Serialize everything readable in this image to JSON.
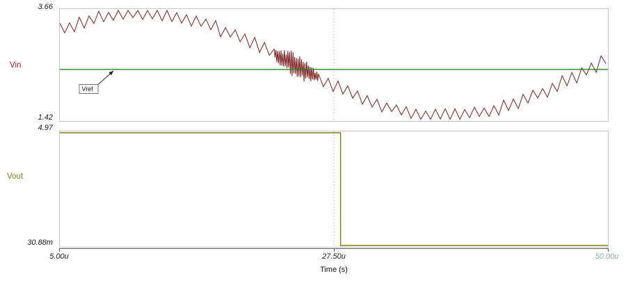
{
  "x_axis": {
    "label": "Time (s)",
    "ticks": [
      {
        "label": "5.00u",
        "t_us": 5,
        "color": "#1a1a1a"
      },
      {
        "label": "27.50u",
        "t_us": 27.5,
        "color": "#1a1a1a"
      },
      {
        "label": "50.00u",
        "t_us": 50,
        "color": "#8aa9b4"
      }
    ],
    "gridline_at_us": 27.5
  },
  "chart_data": [
    {
      "type": "line",
      "panel": "top",
      "ylabel": "Vin",
      "ylabel_color": "#8b2020",
      "y_top_label": "3.66",
      "y_bottom_label": "1.42",
      "ylim": [
        1.42,
        3.66
      ],
      "xlim_us": [
        5,
        50
      ],
      "grid": "off",
      "series": [
        {
          "name": "Vin",
          "color": "#7c1e1e",
          "kind": "noisy_sine",
          "center_v": 2.55,
          "amplitude_v": 1.05,
          "period_us": 50,
          "peak_at_us": 11.7,
          "noise_amplitude_v": 0.15,
          "noise_step_us": 0.4,
          "burst": {
            "start_us": 22.5,
            "end_us": 26.2,
            "amplitude_v": 0.27,
            "step_us": 0.07
          }
        },
        {
          "name": "Vref",
          "color": "#1f8a1f",
          "kind": "constant",
          "value_v": 2.45
        }
      ],
      "annotation": {
        "text": "Vref",
        "box_t_us": 6.6,
        "box_v": 1.97,
        "arrow_tip_t_us": 9.4,
        "arrow_tip_v": 2.42
      }
    },
    {
      "type": "line",
      "panel": "bottom",
      "ylabel": "Vout",
      "ylabel_color": "#7e7e17",
      "y_top_label": "4.97",
      "y_bottom_label": "30.88m",
      "ylim": [
        0.03088,
        4.97
      ],
      "xlim_us": [
        5,
        50
      ],
      "grid": "off",
      "series": [
        {
          "name": "Vout",
          "color": "#7e7e17",
          "kind": "step_fall",
          "high_v": 4.97,
          "low_v": 0.03088,
          "fall_at_us": 28.05
        }
      ]
    }
  ]
}
